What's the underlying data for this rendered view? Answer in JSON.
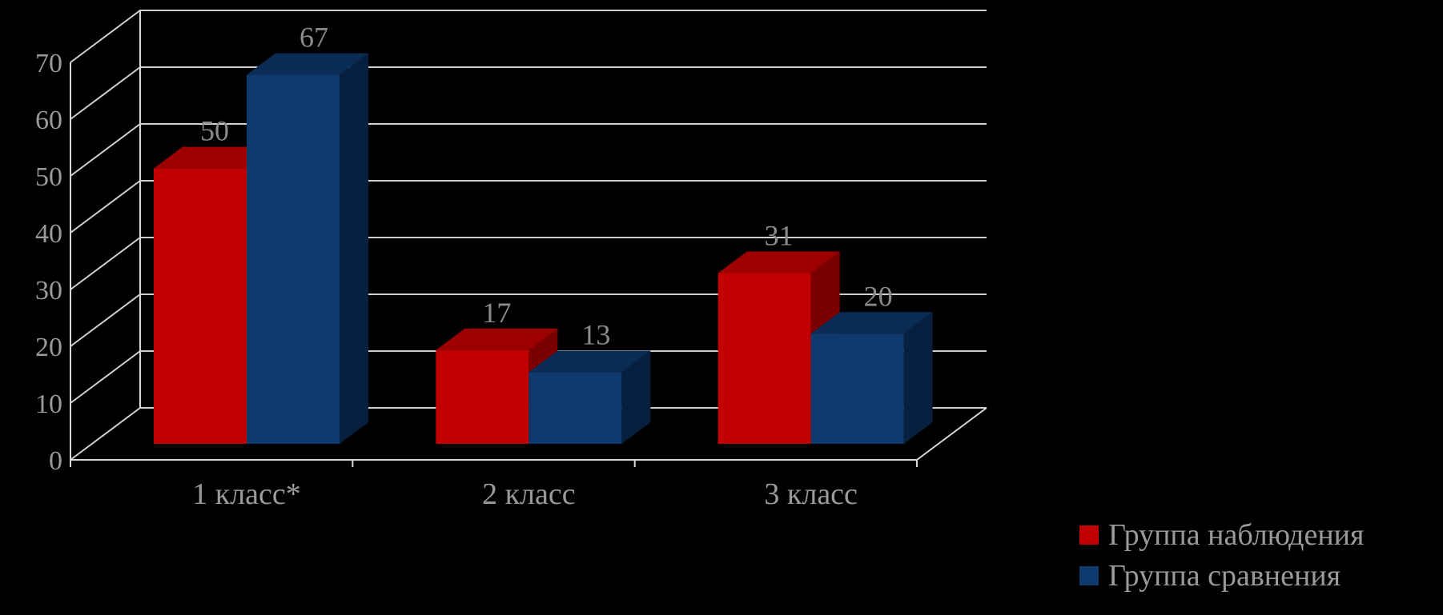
{
  "chart_data": {
    "type": "bar",
    "categories": [
      "1 класс*",
      "2 класс",
      "3 класс"
    ],
    "series": [
      {
        "name": "Группа наблюдения",
        "values": [
          50,
          17,
          31
        ]
      },
      {
        "name": "Группа сравнения",
        "values": [
          67,
          13,
          20
        ]
      }
    ],
    "ylim": [
      0,
      70
    ],
    "yticks": [
      0,
      10,
      20,
      30,
      40,
      50,
      60,
      70
    ],
    "grid": true,
    "legend_position": "bottom-right",
    "title": "",
    "xlabel": "",
    "ylabel": ""
  },
  "colors": {
    "series": [
      "#c00000",
      "#0e3a6e"
    ],
    "series_top": [
      "#9e0000",
      "#0a2c55"
    ],
    "series_side": [
      "#7a0000",
      "#07203f"
    ],
    "background": "#000000"
  }
}
